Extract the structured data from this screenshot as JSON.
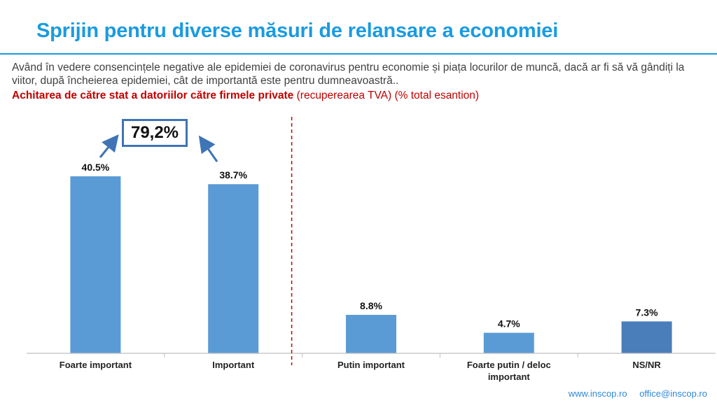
{
  "title": "Sprijin pentru diverse măsuri de relansare a economiei",
  "question": "Având în vedere consencințele negative ale epidemiei de coronavirus pentru economie și piața locurilor de muncă, dacă ar fi să vă gândiți la viitor, după încheierea epidemiei, cât de importantă este pentru dumneavoastră..",
  "subtitle": {
    "lead": "Achitarea de către stat a datoriilor către firmele private",
    "rest": " (recuperearea TVA) (% total esantion)"
  },
  "callout": {
    "value": "79,2%"
  },
  "footer": {
    "website": "www.inscop.ro",
    "email": "office@inscop.ro"
  },
  "colors": {
    "accent": "#1a9be0",
    "bar": "#5b9bd5",
    "bar_last": "#4a7ebb",
    "arrow": "#3f74b6",
    "divider": "#c00000"
  },
  "chart_data": {
    "type": "bar",
    "categories": [
      [
        "Foarte important"
      ],
      [
        "Important"
      ],
      [
        "Putin important"
      ],
      [
        "Foarte putin / deloc",
        "important"
      ],
      [
        "NS/NR"
      ]
    ],
    "values": [
      40.5,
      38.7,
      8.8,
      4.7,
      7.3
    ],
    "labels": [
      "40.5%",
      "38.7%",
      "8.8%",
      "4.7%",
      "7.3%"
    ],
    "unit": "%",
    "ylim": [
      0,
      45
    ],
    "grid": false,
    "legend": "none"
  }
}
